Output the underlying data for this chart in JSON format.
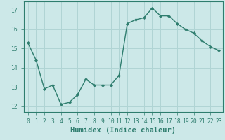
{
  "x": [
    0,
    1,
    2,
    3,
    4,
    5,
    6,
    7,
    8,
    9,
    10,
    11,
    12,
    13,
    14,
    15,
    16,
    17,
    18,
    19,
    20,
    21,
    22,
    23
  ],
  "y": [
    15.3,
    14.4,
    12.9,
    13.1,
    12.1,
    12.2,
    12.6,
    13.4,
    13.1,
    13.1,
    13.1,
    13.6,
    16.3,
    16.5,
    16.6,
    17.1,
    16.7,
    16.7,
    16.3,
    16.0,
    15.8,
    15.4,
    15.1,
    14.9
  ],
  "line_color": "#2e7d6e",
  "marker": "D",
  "markersize": 2.2,
  "linewidth": 1.0,
  "bg_color": "#cce8e8",
  "grid_color": "#b0d4d4",
  "xlabel": "Humidex (Indice chaleur)",
  "ylabel": "",
  "title": "",
  "xlim": [
    -0.5,
    23.5
  ],
  "ylim": [
    11.7,
    17.45
  ],
  "yticks": [
    12,
    13,
    14,
    15,
    16,
    17
  ],
  "xticks": [
    0,
    1,
    2,
    3,
    4,
    5,
    6,
    7,
    8,
    9,
    10,
    11,
    12,
    13,
    14,
    15,
    16,
    17,
    18,
    19,
    20,
    21,
    22,
    23
  ],
  "xtick_labels": [
    "0",
    "1",
    "2",
    "3",
    "4",
    "5",
    "6",
    "7",
    "8",
    "9",
    "10",
    "11",
    "12",
    "13",
    "14",
    "15",
    "16",
    "17",
    "18",
    "19",
    "20",
    "21",
    "22",
    "23"
  ],
  "tick_fontsize": 5.8,
  "xlabel_fontsize": 7.5,
  "text_color": "#2e7d6e"
}
